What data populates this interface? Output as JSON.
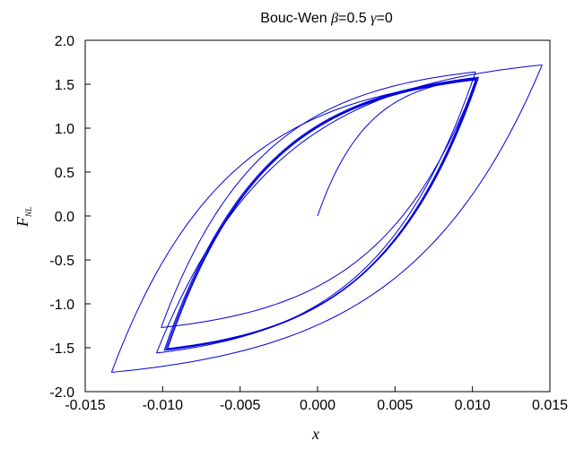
{
  "chart_data": {
    "type": "line",
    "title": {
      "prefix": "Bouc-Wen",
      "param1_symbol": "β",
      "param1_value": "=0.5",
      "param2_symbol": "γ",
      "param2_value": "=0"
    },
    "xlabel": "x",
    "ylabel": {
      "main": "F",
      "sub": "NL"
    },
    "xlim": [
      -0.015,
      0.015
    ],
    "ylim": [
      -2.0,
      2.0
    ],
    "xticks": [
      {
        "value": -0.015,
        "label": "-0.015"
      },
      {
        "value": -0.01,
        "label": "-0.010"
      },
      {
        "value": -0.005,
        "label": "-0.005"
      },
      {
        "value": 0.0,
        "label": "0.000"
      },
      {
        "value": 0.005,
        "label": "0.005"
      },
      {
        "value": 0.01,
        "label": "0.010"
      },
      {
        "value": 0.015,
        "label": "0.015"
      }
    ],
    "yticks": [
      {
        "value": -2.0,
        "label": "-2.0"
      },
      {
        "value": -1.5,
        "label": "-1.5"
      },
      {
        "value": -1.0,
        "label": "-1.0"
      },
      {
        "value": -0.5,
        "label": "-0.5"
      },
      {
        "value": 0.0,
        "label": "0.0"
      },
      {
        "value": 0.5,
        "label": "0.5"
      },
      {
        "value": 1.0,
        "label": "1.0"
      },
      {
        "value": 1.5,
        "label": "1.5"
      },
      {
        "value": 2.0,
        "label": "2.0"
      }
    ],
    "grid": false,
    "line_color": "#0000dd",
    "series": [
      {
        "segments": [
          {
            "x": [
              0.0,
              0.0103
            ],
            "y": [
              0.0,
              1.57
            ]
          },
          {
            "x": [
              0.0103,
              -0.0101
            ],
            "y": [
              1.57,
              -1.27
            ]
          },
          {
            "x": [
              -0.0101,
              0.0102
            ],
            "y": [
              -1.27,
              1.64
            ]
          },
          {
            "x": [
              0.0102,
              -0.0104
            ],
            "y": [
              1.64,
              -1.56
            ]
          },
          {
            "x": [
              -0.0104,
              0.0145
            ],
            "y": [
              -1.56,
              1.72
            ]
          },
          {
            "x": [
              0.0145,
              -0.0133
            ],
            "y": [
              1.72,
              -1.78
            ]
          },
          {
            "x": [
              -0.0133,
              0.0102
            ],
            "y": [
              -1.78,
              1.55
            ]
          },
          {
            "x": [
              0.0102,
              -0.0099
            ],
            "y": [
              1.55,
              -1.53
            ]
          },
          {
            "x": [
              -0.0099,
              0.0104
            ],
            "y": [
              -1.53,
              1.58
            ]
          },
          {
            "x": [
              0.0104,
              -0.0098
            ],
            "y": [
              1.58,
              -1.52
            ]
          },
          {
            "x": [
              -0.0098,
              0.0103
            ],
            "y": [
              -1.52,
              1.56
            ]
          },
          {
            "x": [
              0.0103,
              -0.0097
            ],
            "y": [
              1.56,
              -1.51
            ]
          },
          {
            "x": [
              -0.0097,
              0.0103
            ],
            "y": [
              -1.51,
              1.57
            ]
          },
          {
            "x": [
              0.0103,
              -0.0097
            ],
            "y": [
              1.57,
              -1.52
            ]
          },
          {
            "x": [
              -0.0097,
              0.0102
            ],
            "y": [
              -1.52,
              1.55
            ]
          }
        ]
      }
    ]
  }
}
